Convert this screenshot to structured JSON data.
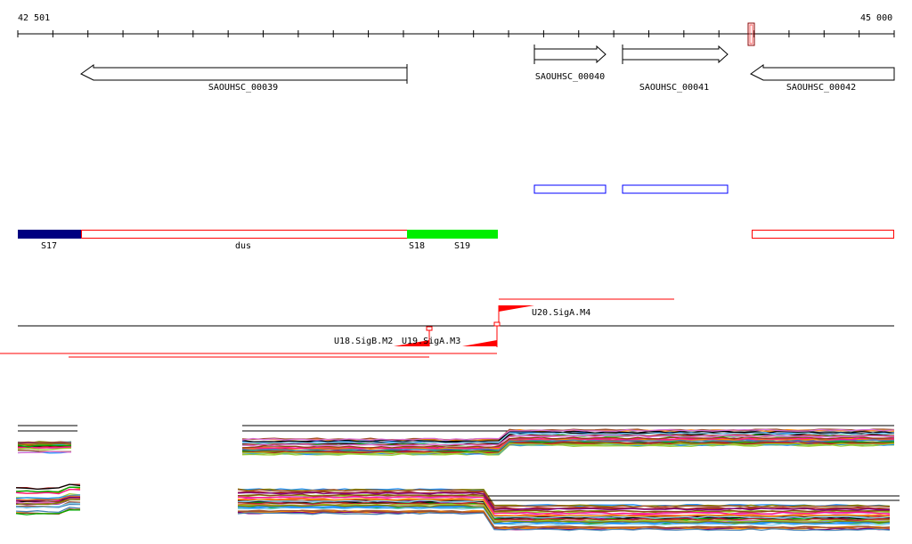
{
  "ruler": {
    "start_label": "42 501",
    "end_label": "45 000",
    "tick_count": 25
  },
  "genes": [
    {
      "id": "SAOUHSC_00039",
      "strand": "-"
    },
    {
      "id": "SAOUHSC_00040",
      "strand": "+"
    },
    {
      "id": "SAOUHSC_00041",
      "strand": "+"
    },
    {
      "id": "SAOUHSC_00042",
      "strand": "-"
    }
  ],
  "segments": [
    {
      "label": "S17",
      "color": "#000080"
    },
    {
      "label": "dus",
      "color": "#ff0000"
    },
    {
      "label": "S18",
      "color": "#00ee00"
    },
    {
      "label": "S19",
      "color": "#00ee00"
    }
  ],
  "promoters": [
    {
      "label": "U18.SigB.M2"
    },
    {
      "label": "U19.SigA.M3"
    },
    {
      "label": "U20.SigA.M4"
    }
  ],
  "colors": {
    "accent": "#ff0000",
    "blue_box": "#0000ff",
    "selection": "#8b0000"
  }
}
